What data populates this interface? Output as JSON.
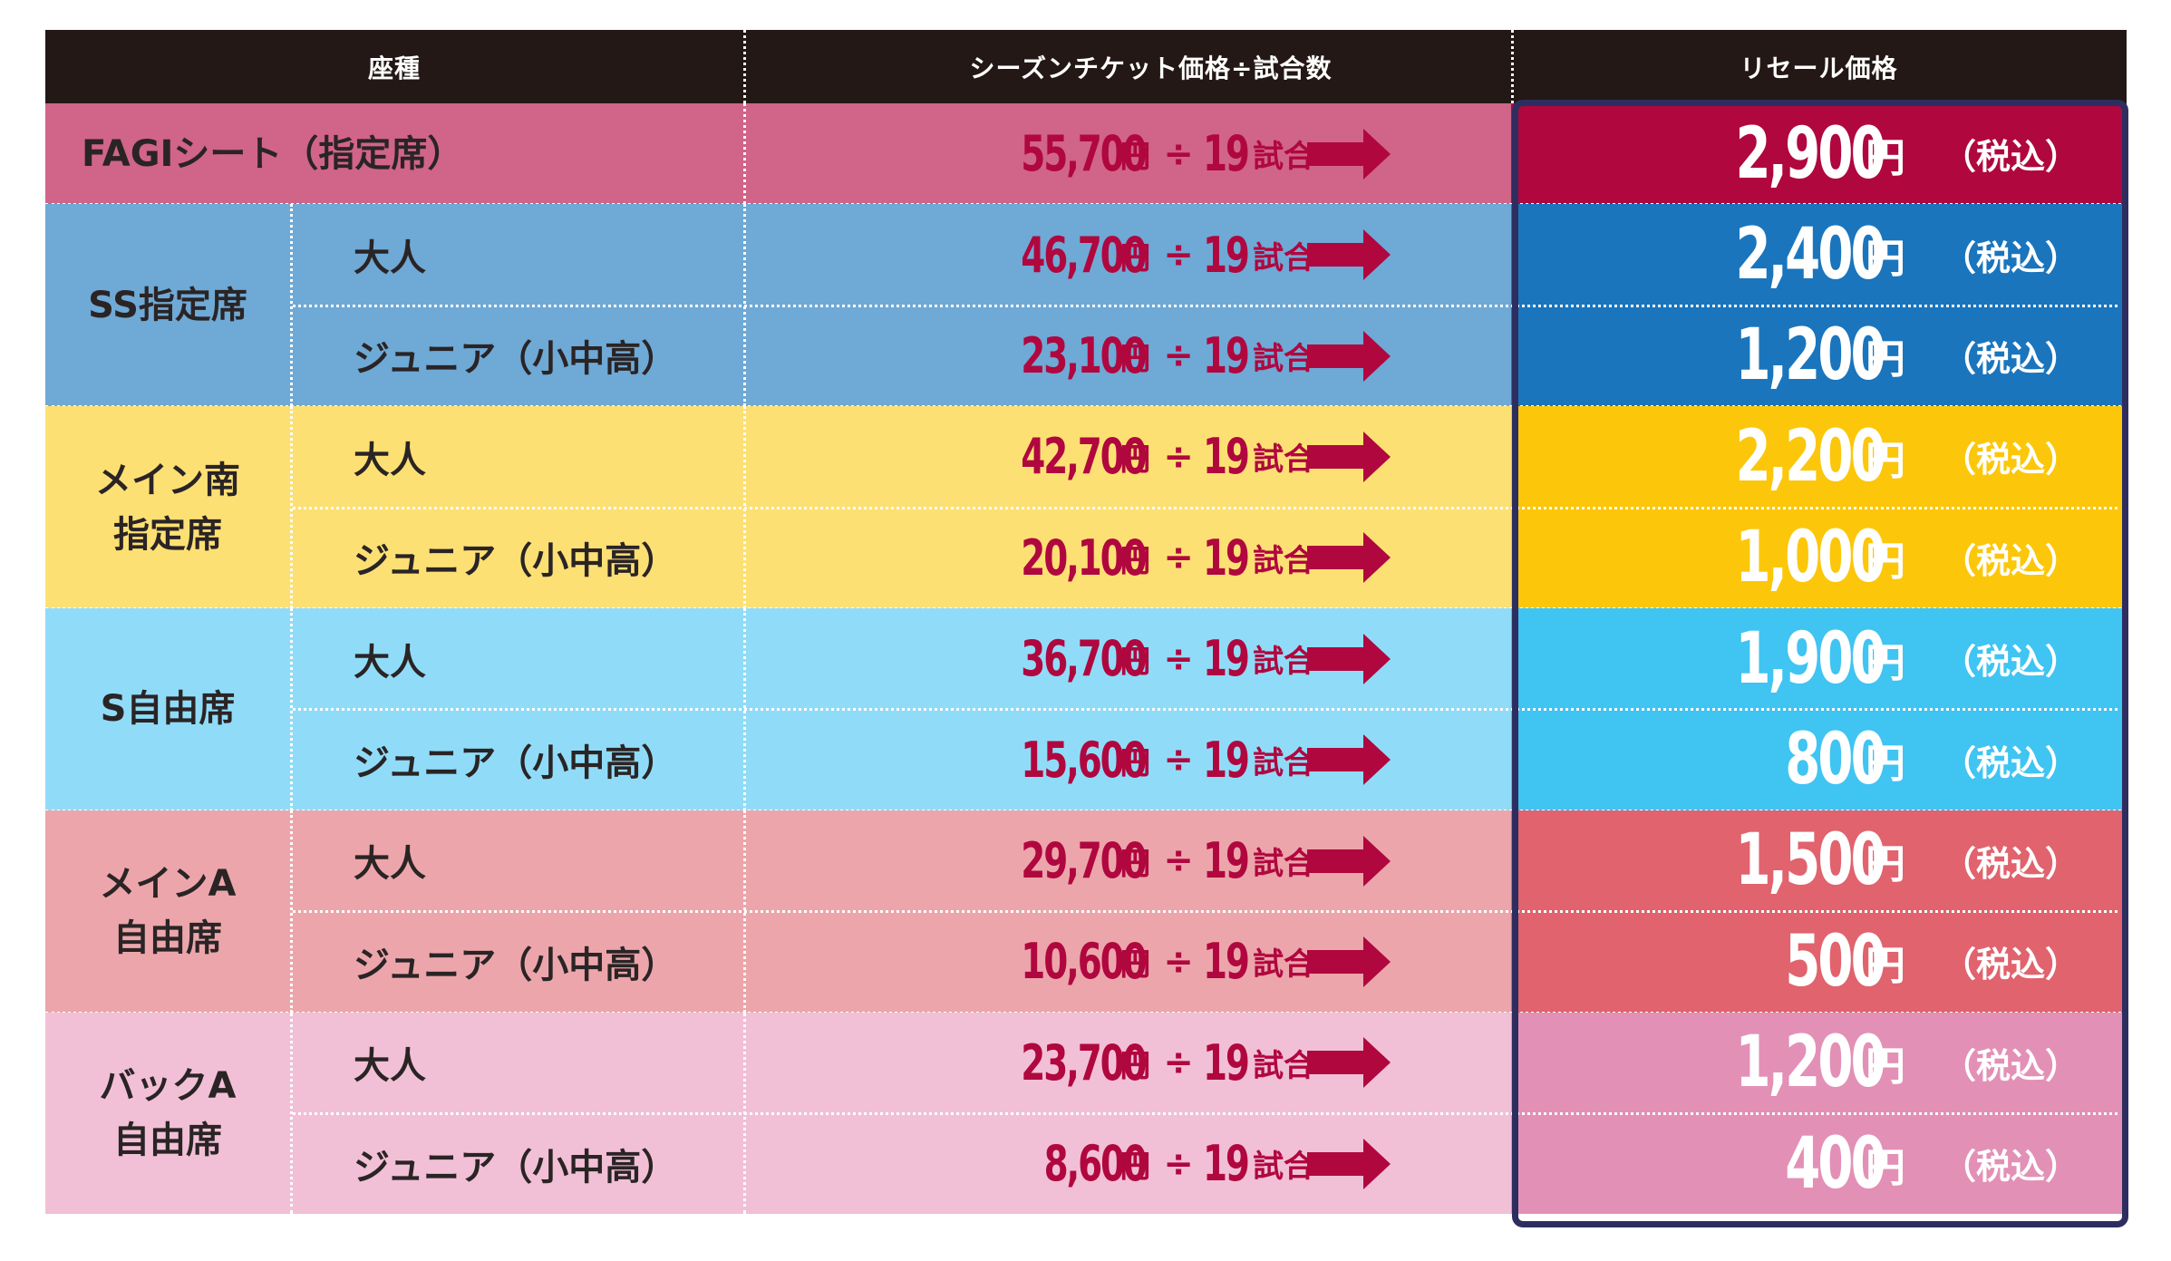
{
  "header": {
    "col1": "座種",
    "col2": "シーズンチケット価格÷試合数",
    "col3": "リセール価格"
  },
  "colors": {
    "header_bg": "#231815",
    "price_text": "#b0073f",
    "arrow": "#b0073f",
    "frame": "#2d2e5f"
  },
  "labels": {
    "yen": "円",
    "divide": "÷",
    "games": "19",
    "games_suffix": "試合",
    "tax": "（税込）"
  },
  "groups": [
    {
      "name": "FAGIシート（指定席）",
      "bg": "#d16489",
      "resale_bg": "#b0073f",
      "rows": [
        {
          "sub": "",
          "season_price": "55,700",
          "resale_price": "2,900"
        }
      ]
    },
    {
      "name": "SS指定席",
      "bg": "#6fa9d6",
      "resale_bg": "#1a75bd",
      "rows": [
        {
          "sub": "大人",
          "season_price": "46,700",
          "resale_price": "2,400"
        },
        {
          "sub": "ジュニア（小中高）",
          "season_price": "23,100",
          "resale_price": "1,200"
        }
      ]
    },
    {
      "name": "メイン南\n指定席",
      "bg": "#fde074",
      "resale_bg": "#fcc70a",
      "rows": [
        {
          "sub": "大人",
          "season_price": "42,700",
          "resale_price": "2,200"
        },
        {
          "sub": "ジュニア（小中高）",
          "season_price": "20,100",
          "resale_price": "1,000"
        }
      ]
    },
    {
      "name": "S自由席",
      "bg": "#90dcf8",
      "resale_bg": "#40c4f2",
      "rows": [
        {
          "sub": "大人",
          "season_price": "36,700",
          "resale_price": "1,900"
        },
        {
          "sub": "ジュニア（小中高）",
          "season_price": "15,600",
          "resale_price": "800"
        }
      ]
    },
    {
      "name": "メインA\n自由席",
      "bg": "#eca6ab",
      "resale_bg": "#e0636e",
      "rows": [
        {
          "sub": "大人",
          "season_price": "29,700",
          "resale_price": "1,500"
        },
        {
          "sub": "ジュニア（小中高）",
          "season_price": "10,600",
          "resale_price": "500"
        }
      ]
    },
    {
      "name": "バックA\n自由席",
      "bg": "#f2c0d6",
      "resale_bg": "#e390b6",
      "rows": [
        {
          "sub": "大人",
          "season_price": "23,700",
          "resale_price": "1,200"
        },
        {
          "sub": "ジュニア（小中高）",
          "season_price": "8,600",
          "resale_price": "400"
        }
      ]
    }
  ]
}
